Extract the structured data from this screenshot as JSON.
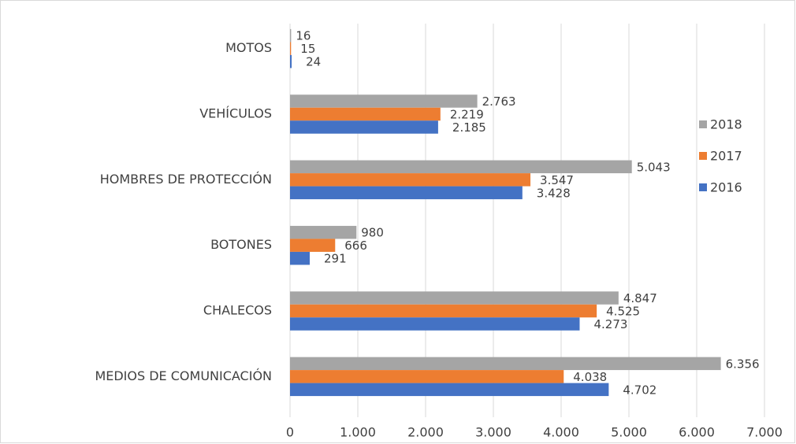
{
  "chart_data": {
    "type": "hbar",
    "categories": [
      "MOTOS",
      "VEHÍCULOS",
      "HOMBRES DE PROTECCIÓN",
      "BOTONES",
      "CHALECOS",
      "MEDIOS DE COMUNICACIÓN"
    ],
    "series": [
      {
        "name": "2018",
        "color": "#a5a5a5",
        "values": [
          16,
          2763,
          5043,
          980,
          4847,
          6356
        ],
        "value_labels": [
          "16",
          "2.763",
          "5.043",
          "980",
          "4.847",
          "6.356"
        ]
      },
      {
        "name": "2017",
        "color": "#ed7d31",
        "values": [
          15,
          2219,
          3547,
          666,
          4525,
          4038
        ],
        "value_labels": [
          "15",
          "2.219",
          "3.547",
          "666",
          "4.525",
          "4.038"
        ]
      },
      {
        "name": "2016",
        "color": "#4472c4",
        "values": [
          24,
          2185,
          3428,
          291,
          4273,
          4702
        ],
        "value_labels": [
          "24",
          "2.185",
          "3.428",
          "291",
          "4.273",
          "4.702"
        ]
      }
    ],
    "xlim": [
      0,
      7000
    ],
    "xticks": [
      0,
      {
        "value": 1000,
        "label": "1.000"
      },
      {
        "value": 2000,
        "label": "2.000"
      },
      {
        "value": 3000,
        "label": "3.000"
      },
      {
        "value": 4000,
        "label": "4.000"
      },
      {
        "value": 5000,
        "label": "5.000"
      },
      {
        "value": 6000,
        "label": "6.000"
      },
      {
        "value": 7000,
        "label": "7.000"
      }
    ],
    "grid": true,
    "legend": "right"
  }
}
